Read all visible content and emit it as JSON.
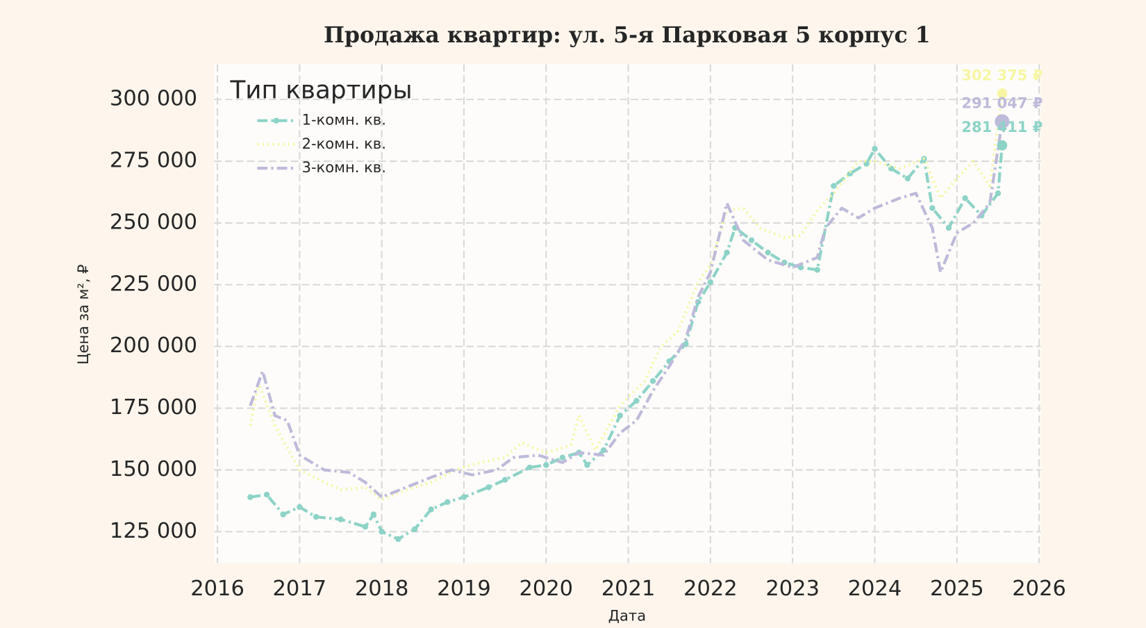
{
  "chart_data": {
    "type": "line",
    "title": "Продажа квартир: ул. 5-я Парковая 5 корпус 1",
    "x_label": "Дата",
    "y_label": "Цена за м², ₽",
    "legend_title": "Тип квартиры",
    "legend": "upper left",
    "grid": true,
    "xlim": [
      2015.96,
      2026.02
    ],
    "ylim": [
      112300,
      314200
    ],
    "xticks": [
      2016,
      2017,
      2018,
      2019,
      2020,
      2021,
      2022,
      2023,
      2024,
      2025,
      2026
    ],
    "yticks": [
      {
        "value": 125000,
        "label": "125 000"
      },
      {
        "value": 150000,
        "label": "150 000"
      },
      {
        "value": 175000,
        "label": "175 000"
      },
      {
        "value": 200000,
        "label": "200 000"
      },
      {
        "value": 225000,
        "label": "225 000"
      },
      {
        "value": 250000,
        "label": "250 000"
      },
      {
        "value": 275000,
        "label": "275 000"
      },
      {
        "value": 300000,
        "label": "300 000"
      }
    ],
    "series": [
      {
        "name": "1-комн. кв.",
        "color": "#8dd3c7",
        "linestyle": "dashdot",
        "marker": true,
        "x": [
          2016.4,
          2016.6,
          2016.8,
          2017.0,
          2017.2,
          2017.5,
          2017.8,
          2017.9,
          2018.0,
          2018.2,
          2018.4,
          2018.6,
          2018.8,
          2019.0,
          2019.3,
          2019.5,
          2019.8,
          2020.0,
          2020.2,
          2020.4,
          2020.5,
          2020.7,
          2020.9,
          2021.1,
          2021.3,
          2021.5,
          2021.7,
          2021.85,
          2022.0,
          2022.2,
          2022.3,
          2022.5,
          2022.7,
          2022.9,
          2023.1,
          2023.3,
          2023.5,
          2023.7,
          2023.9,
          2024.0,
          2024.2,
          2024.4,
          2024.6,
          2024.7,
          2024.9,
          2025.1,
          2025.3,
          2025.5,
          2025.55
        ],
        "values": [
          139000,
          140000,
          132000,
          135000,
          131000,
          130000,
          127000,
          132000,
          125000,
          122000,
          126000,
          134000,
          137000,
          139000,
          143000,
          146000,
          151000,
          152000,
          155000,
          157000,
          152000,
          158000,
          172000,
          178000,
          186000,
          194000,
          201000,
          218000,
          226000,
          238000,
          248000,
          243000,
          238000,
          234000,
          232000,
          231000,
          265000,
          270000,
          274000,
          280000,
          272000,
          268000,
          276000,
          256000,
          248000,
          260000,
          253000,
          262000,
          281411
        ]
      },
      {
        "name": "2-комн. кв.",
        "color": "#f6f6a4",
        "linestyle": "dotted",
        "marker": false,
        "x": [
          2016.4,
          2016.5,
          2016.7,
          2017.0,
          2017.3,
          2017.5,
          2017.8,
          2018.0,
          2018.3,
          2018.6,
          2018.9,
          2019.2,
          2019.5,
          2019.7,
          2020.0,
          2020.3,
          2020.4,
          2020.6,
          2020.9,
          2021.2,
          2021.4,
          2021.6,
          2021.85,
          2022.0,
          2022.2,
          2022.4,
          2022.6,
          2022.9,
          2023.1,
          2023.3,
          2023.5,
          2023.8,
          2024.0,
          2024.3,
          2024.6,
          2024.8,
          2025.0,
          2025.2,
          2025.4,
          2025.55
        ],
        "values": [
          168000,
          185000,
          168000,
          150000,
          145000,
          142000,
          143000,
          138000,
          142000,
          145000,
          150000,
          153000,
          155000,
          161000,
          157000,
          160000,
          172000,
          158000,
          176000,
          186000,
          200000,
          206000,
          226000,
          233000,
          255000,
          256000,
          248000,
          244000,
          245000,
          255000,
          262000,
          275000,
          275000,
          272000,
          276000,
          260000,
          268000,
          275000,
          265000,
          302375
        ]
      },
      {
        "name": "3-комн. кв.",
        "color": "#bebada",
        "linestyle": "dashdot",
        "marker": false,
        "x": [
          2016.4,
          2016.55,
          2016.7,
          2016.85,
          2017.0,
          2017.3,
          2017.6,
          2017.8,
          2018.0,
          2018.3,
          2018.6,
          2018.85,
          2019.1,
          2019.4,
          2019.6,
          2019.9,
          2020.2,
          2020.4,
          2020.7,
          2020.9,
          2021.1,
          2021.3,
          2021.5,
          2021.7,
          2021.85,
          2022.0,
          2022.2,
          2022.4,
          2022.7,
          2023.0,
          2023.3,
          2023.4,
          2023.6,
          2023.8,
          2024.0,
          2024.3,
          2024.5,
          2024.7,
          2024.8,
          2025.0,
          2025.2,
          2025.4,
          2025.55
        ],
        "values": [
          176000,
          190000,
          172000,
          170000,
          156000,
          150000,
          149000,
          145000,
          139000,
          143000,
          147000,
          150000,
          148000,
          150000,
          155000,
          156000,
          153000,
          157000,
          156000,
          165000,
          170000,
          182000,
          192000,
          203000,
          220000,
          230000,
          258000,
          243000,
          235000,
          232000,
          236000,
          248000,
          256000,
          252000,
          256000,
          260000,
          262000,
          248000,
          230000,
          246000,
          250000,
          258000,
          291047
        ]
      }
    ],
    "annotations": [
      {
        "series": 1,
        "text": "302 375 ₽",
        "x": 2025.55,
        "y": 302375
      },
      {
        "series": 2,
        "text": "291 047 ₽",
        "x": 2025.55,
        "y": 291047
      },
      {
        "series": 0,
        "text": "281 411 ₽",
        "x": 2025.55,
        "y": 281411
      }
    ]
  }
}
